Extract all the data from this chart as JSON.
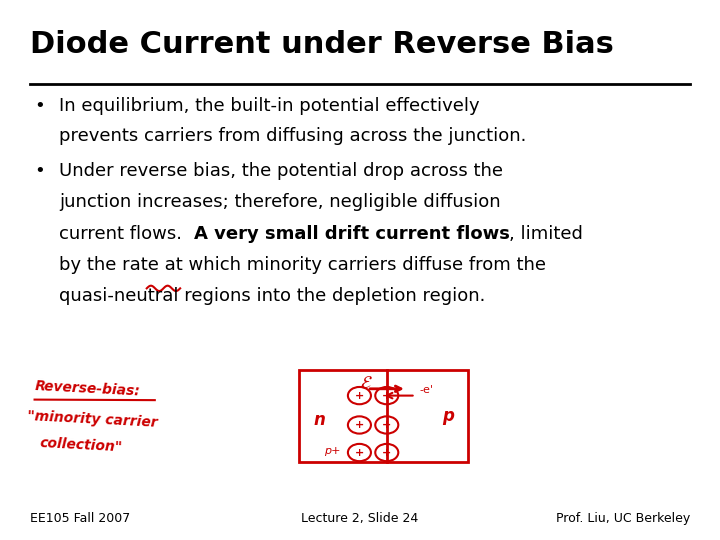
{
  "title": "Diode Current under Reverse Bias",
  "bullet1_line1": "In equilibrium, the built-in potential effectively",
  "bullet1_line2": "prevents carriers from diffusing across the junction.",
  "bullet2_line1": "Under reverse bias, the potential drop across the",
  "bullet2_line2": "junction increases; therefore, negligible diffusion",
  "bullet2_line3_normal": "current flows.  ",
  "bullet2_line3_bold": "A very small drift current flows",
  "bullet2_line3_end": ", limited",
  "bullet2_line4": "by the rate at which minority carriers diffuse from the",
  "bullet2_line5": "quasi-neutral regions into the depletion region.",
  "footer_left": "EE105 Fall 2007",
  "footer_center": "Lecture 2, Slide 24",
  "footer_right": "Prof. Liu, UC Berkeley",
  "bg_color": "#ffffff",
  "text_color": "#000000",
  "red_color": "#cc0000",
  "title_fontsize": 22,
  "body_fontsize": 13,
  "footer_fontsize": 9
}
